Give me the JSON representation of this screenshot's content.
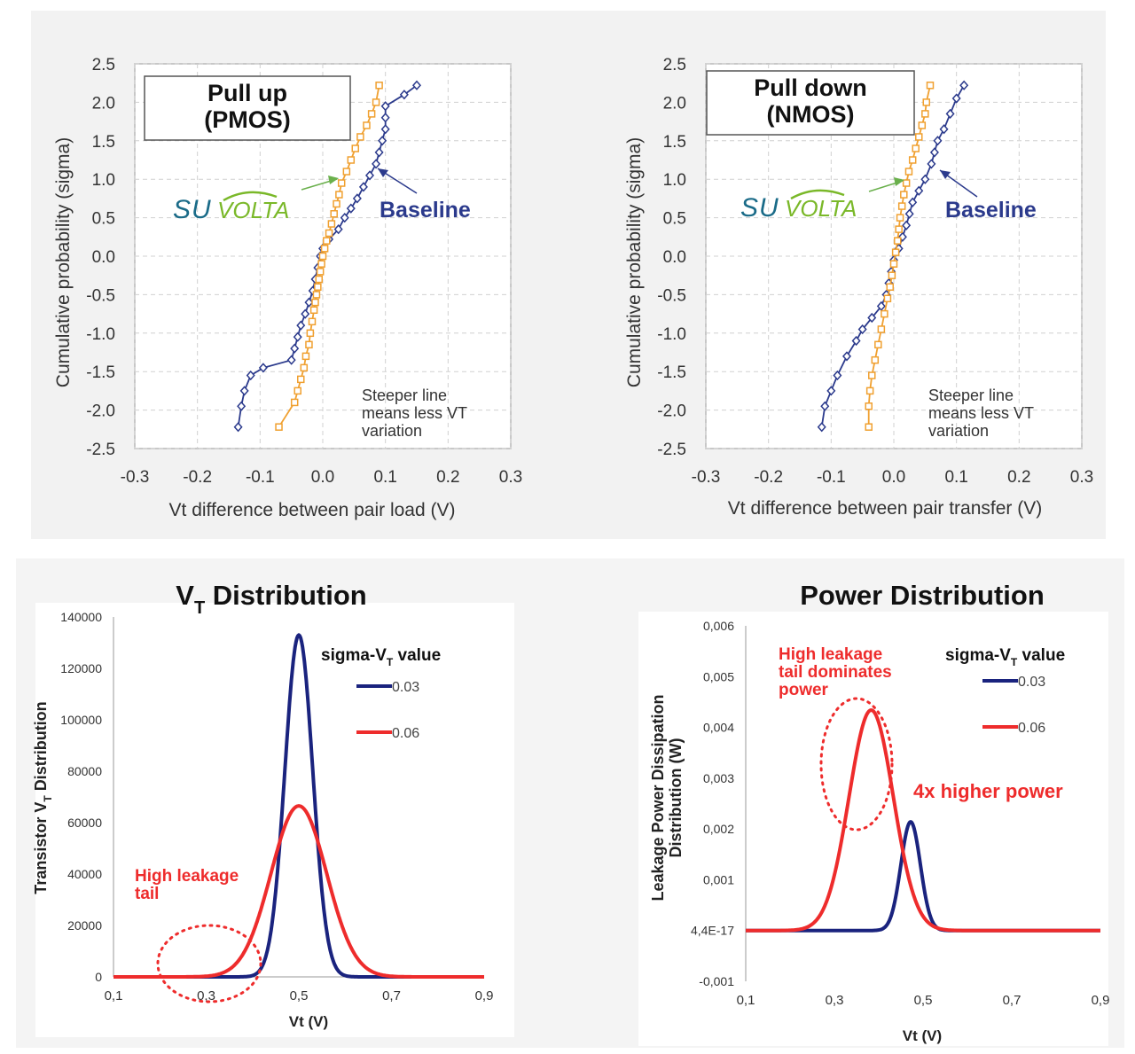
{
  "chart_data": [
    {
      "type": "scatter",
      "title": "Pull up\n(PMOS)",
      "xlabel": "Vt difference between pair load (V)",
      "ylabel": "Cumulative probability (sigma)",
      "xlim": [
        -0.3,
        0.3
      ],
      "ylim": [
        -2.5,
        2.5
      ],
      "x_ticks": [
        "-0.3",
        "-0.2",
        "-0.1",
        "0.0",
        "0.1",
        "0.2",
        "0.3"
      ],
      "y_ticks": [
        "2.5",
        "2.0",
        "1.5",
        "1.0",
        "0.5",
        "0.0",
        "-0.5",
        "-1.0",
        "-1.5",
        "-2.0",
        "-2.5"
      ],
      "grid": true,
      "annotations": [
        "Baseline",
        "Steeper line\nmeans less  VT\nvariation"
      ],
      "logo_text": "SuVolta",
      "series": [
        {
          "name": "SuVolta",
          "color": "#f0a030",
          "marker": "square",
          "points": [
            [
              -0.07,
              -2.22
            ],
            [
              -0.045,
              -1.9
            ],
            [
              -0.04,
              -1.75
            ],
            [
              -0.035,
              -1.6
            ],
            [
              -0.03,
              -1.45
            ],
            [
              -0.027,
              -1.3
            ],
            [
              -0.022,
              -1.15
            ],
            [
              -0.02,
              -1.0
            ],
            [
              -0.017,
              -0.85
            ],
            [
              -0.014,
              -0.7
            ],
            [
              -0.012,
              -0.6
            ],
            [
              -0.01,
              -0.5
            ],
            [
              -0.008,
              -0.4
            ],
            [
              -0.006,
              -0.3
            ],
            [
              -0.004,
              -0.2
            ],
            [
              -0.002,
              -0.1
            ],
            [
              0.0,
              0.0
            ],
            [
              0.003,
              0.1
            ],
            [
              0.006,
              0.2
            ],
            [
              0.01,
              0.3
            ],
            [
              0.014,
              0.42
            ],
            [
              0.018,
              0.55
            ],
            [
              0.022,
              0.68
            ],
            [
              0.026,
              0.8
            ],
            [
              0.03,
              0.95
            ],
            [
              0.038,
              1.1
            ],
            [
              0.045,
              1.25
            ],
            [
              0.052,
              1.4
            ],
            [
              0.06,
              1.55
            ],
            [
              0.07,
              1.7
            ],
            [
              0.078,
              1.85
            ],
            [
              0.085,
              2.0
            ],
            [
              0.09,
              2.22
            ]
          ]
        },
        {
          "name": "Baseline",
          "color": "#2b3a8c",
          "marker": "diamond",
          "points": [
            [
              -0.135,
              -2.22
            ],
            [
              -0.13,
              -1.95
            ],
            [
              -0.125,
              -1.75
            ],
            [
              -0.115,
              -1.55
            ],
            [
              -0.095,
              -1.45
            ],
            [
              -0.05,
              -1.35
            ],
            [
              -0.045,
              -1.2
            ],
            [
              -0.04,
              -1.05
            ],
            [
              -0.035,
              -0.9
            ],
            [
              -0.028,
              -0.75
            ],
            [
              -0.022,
              -0.6
            ],
            [
              -0.016,
              -0.45
            ],
            [
              -0.012,
              -0.3
            ],
            [
              -0.008,
              -0.15
            ],
            [
              -0.004,
              0.0
            ],
            [
              0.0,
              0.1
            ],
            [
              0.01,
              0.22
            ],
            [
              0.025,
              0.35
            ],
            [
              0.035,
              0.5
            ],
            [
              0.045,
              0.62
            ],
            [
              0.055,
              0.75
            ],
            [
              0.065,
              0.9
            ],
            [
              0.075,
              1.05
            ],
            [
              0.085,
              1.2
            ],
            [
              0.09,
              1.35
            ],
            [
              0.095,
              1.5
            ],
            [
              0.1,
              1.65
            ],
            [
              0.1,
              1.8
            ],
            [
              0.1,
              1.95
            ],
            [
              0.13,
              2.1
            ],
            [
              0.15,
              2.22
            ]
          ]
        }
      ]
    },
    {
      "type": "scatter",
      "title": "Pull down\n(NMOS)",
      "xlabel": "Vt difference between pair transfer (V)",
      "ylabel": "Cumulative probability (sigma)",
      "xlim": [
        -0.3,
        0.3
      ],
      "ylim": [
        -2.5,
        2.5
      ],
      "x_ticks": [
        "-0.3",
        "-0.2",
        "-0.1",
        "0.0",
        "0.1",
        "0.2",
        "0.3"
      ],
      "y_ticks": [
        "2.5",
        "2.0",
        "1.5",
        "1.0",
        "0.5",
        "0.0",
        "-0.5",
        "-1.0",
        "-1.5",
        "-2.0",
        "-2.5"
      ],
      "grid": true,
      "annotations": [
        "Baseline",
        "Steeper line\nmeans less  VT\nvariation"
      ],
      "logo_text": "SuVolta",
      "series": [
        {
          "name": "SuVolta",
          "color": "#f0a030",
          "marker": "square",
          "points": [
            [
              -0.04,
              -2.22
            ],
            [
              -0.04,
              -1.95
            ],
            [
              -0.038,
              -1.75
            ],
            [
              -0.035,
              -1.55
            ],
            [
              -0.03,
              -1.35
            ],
            [
              -0.025,
              -1.15
            ],
            [
              -0.02,
              -0.95
            ],
            [
              -0.015,
              -0.75
            ],
            [
              -0.01,
              -0.55
            ],
            [
              -0.006,
              -0.4
            ],
            [
              -0.003,
              -0.25
            ],
            [
              0.0,
              -0.1
            ],
            [
              0.003,
              0.05
            ],
            [
              0.006,
              0.2
            ],
            [
              0.008,
              0.35
            ],
            [
              0.01,
              0.5
            ],
            [
              0.013,
              0.65
            ],
            [
              0.016,
              0.8
            ],
            [
              0.02,
              0.95
            ],
            [
              0.024,
              1.1
            ],
            [
              0.03,
              1.25
            ],
            [
              0.035,
              1.4
            ],
            [
              0.04,
              1.55
            ],
            [
              0.045,
              1.7
            ],
            [
              0.05,
              1.85
            ],
            [
              0.052,
              2.0
            ],
            [
              0.058,
              2.22
            ]
          ]
        },
        {
          "name": "Baseline",
          "color": "#2b3a8c",
          "marker": "diamond",
          "points": [
            [
              -0.115,
              -2.22
            ],
            [
              -0.11,
              -1.95
            ],
            [
              -0.1,
              -1.75
            ],
            [
              -0.09,
              -1.55
            ],
            [
              -0.075,
              -1.3
            ],
            [
              -0.06,
              -1.1
            ],
            [
              -0.05,
              -0.95
            ],
            [
              -0.035,
              -0.8
            ],
            [
              -0.02,
              -0.65
            ],
            [
              -0.012,
              -0.5
            ],
            [
              -0.008,
              -0.35
            ],
            [
              -0.004,
              -0.2
            ],
            [
              0.0,
              -0.05
            ],
            [
              0.008,
              0.1
            ],
            [
              0.014,
              0.25
            ],
            [
              0.02,
              0.4
            ],
            [
              0.025,
              0.55
            ],
            [
              0.03,
              0.7
            ],
            [
              0.04,
              0.85
            ],
            [
              0.05,
              1.0
            ],
            [
              0.06,
              1.2
            ],
            [
              0.065,
              1.35
            ],
            [
              0.07,
              1.5
            ],
            [
              0.08,
              1.65
            ],
            [
              0.09,
              1.85
            ],
            [
              0.1,
              2.05
            ],
            [
              0.112,
              2.22
            ]
          ]
        }
      ]
    },
    {
      "type": "line",
      "title": "VT Distribution",
      "xlabel": "Vt (V)",
      "ylabel": "Transistor VT  Distribution",
      "xlim": [
        0.1,
        0.9
      ],
      "ylim": [
        0,
        140000
      ],
      "x_ticks": [
        "0,1",
        "0,3",
        "0,5",
        "0,7",
        "0,9"
      ],
      "y_ticks": [
        "140000",
        "120000",
        "100000",
        "80000",
        "60000",
        "40000",
        "20000",
        "0"
      ],
      "legend_title": "sigma-VT value",
      "legend_position": "top-right",
      "annotations": [
        "High leakage\ntail"
      ],
      "series": [
        {
          "name": "0.03",
          "color": "#1a237e",
          "mean": 0.5,
          "sigma": 0.03,
          "peak": 133000
        },
        {
          "name": "0.06",
          "color": "#ee2c2c",
          "mean": 0.5,
          "sigma": 0.06,
          "peak": 66500
        }
      ]
    },
    {
      "type": "line",
      "title": "Power Distribution",
      "xlabel": "Vt (V)",
      "ylabel": "Leakage Power Dissipation\nDistribution (W)",
      "xlim": [
        0.1,
        0.9
      ],
      "ylim": [
        -0.001,
        0.006
      ],
      "x_ticks": [
        "0,1",
        "0,3",
        "0,5",
        "0,7",
        "0,9"
      ],
      "y_ticks": [
        "0,006",
        "0,005",
        "0,004",
        "0,003",
        "0,002",
        "0,001",
        "4,4E-17",
        "-0,001"
      ],
      "legend_title": "sigma-VT value",
      "legend_position": "top-right",
      "annotations": [
        "High leakage\ntail dominates\npower",
        "4x higher power"
      ],
      "series": [
        {
          "name": "0.03",
          "color": "#1a237e",
          "mean": 0.472,
          "sigma": 0.022,
          "peak": 0.00214
        },
        {
          "name": "0.06",
          "color": "#ee2c2c",
          "mean": 0.383,
          "sigma": 0.05,
          "peak": 0.00434
        }
      ]
    }
  ]
}
